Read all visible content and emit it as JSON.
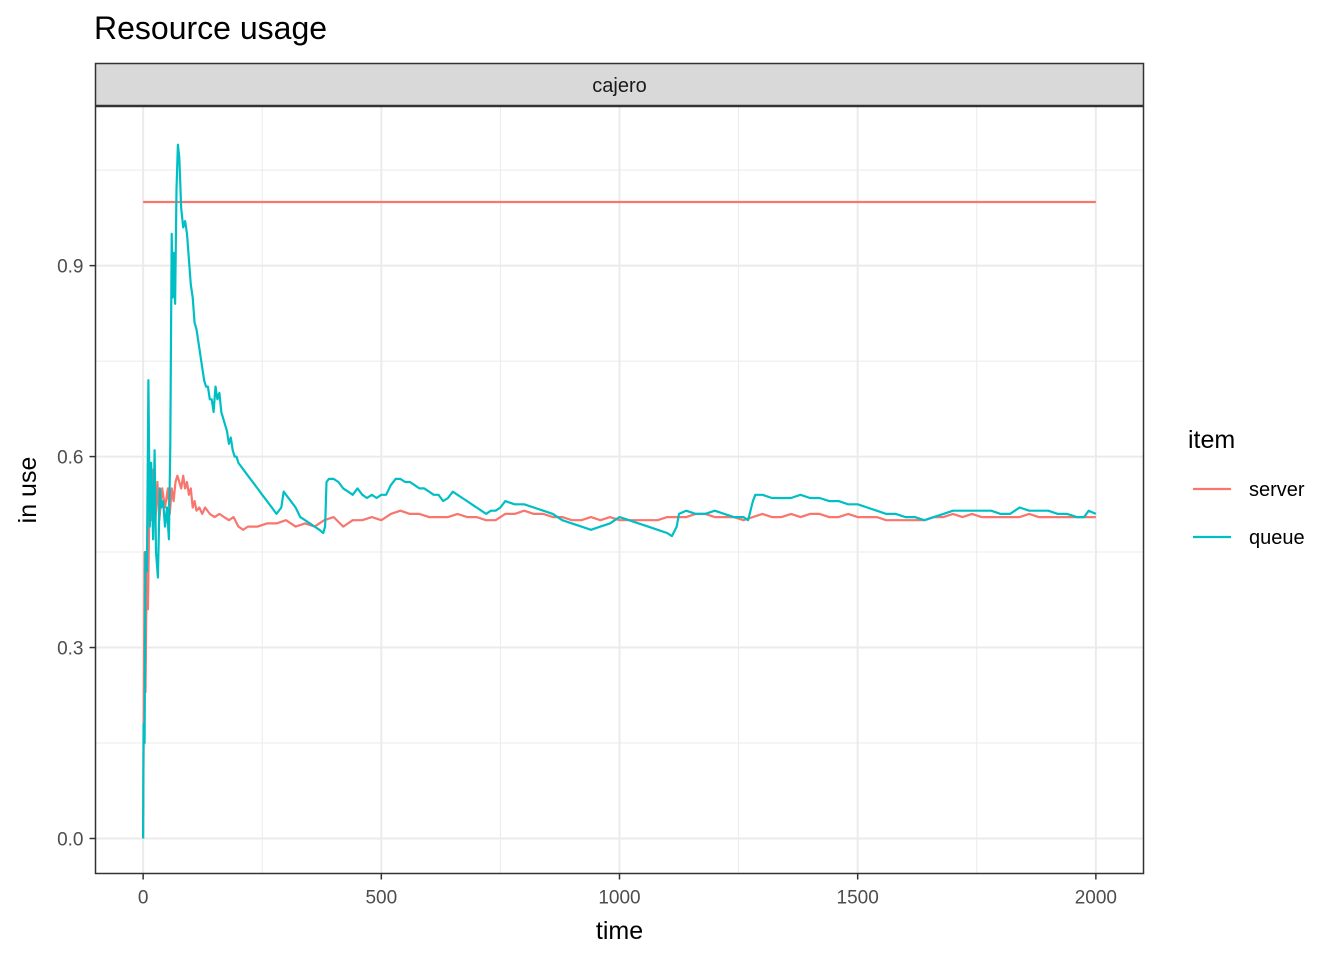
{
  "chart_data": {
    "type": "line",
    "title": "Resource usage",
    "facet_label": "cajero",
    "xlabel": "time",
    "ylabel": "in use",
    "xlim": [
      -100,
      2100
    ],
    "ylim": [
      -0.055,
      1.15
    ],
    "x_ticks": [
      0,
      500,
      1000,
      1500,
      2000
    ],
    "y_ticks": [
      0.0,
      0.3,
      0.6,
      0.9
    ],
    "x_tick_labels": [
      "0",
      "500",
      "1000",
      "1500",
      "2000"
    ],
    "y_tick_labels": [
      "0.0",
      "0.3",
      "0.6",
      "0.9"
    ],
    "grid": true,
    "legend": {
      "title": "item",
      "position": "right"
    },
    "reference_line": {
      "series": "server",
      "y": 1.0,
      "x": [
        0,
        2000
      ]
    },
    "series": [
      {
        "name": "server",
        "color": "#F8766D",
        "points": [
          [
            0,
            0.0
          ],
          [
            3,
            0.45
          ],
          [
            5,
            0.23
          ],
          [
            8,
            0.45
          ],
          [
            10,
            0.36
          ],
          [
            14,
            0.56
          ],
          [
            18,
            0.5
          ],
          [
            22,
            0.58
          ],
          [
            26,
            0.5
          ],
          [
            30,
            0.56
          ],
          [
            34,
            0.5
          ],
          [
            40,
            0.55
          ],
          [
            46,
            0.52
          ],
          [
            52,
            0.55
          ],
          [
            56,
            0.51
          ],
          [
            60,
            0.55
          ],
          [
            64,
            0.53
          ],
          [
            68,
            0.56
          ],
          [
            72,
            0.57
          ],
          [
            76,
            0.56
          ],
          [
            80,
            0.55
          ],
          [
            84,
            0.57
          ],
          [
            88,
            0.55
          ],
          [
            92,
            0.56
          ],
          [
            96,
            0.54
          ],
          [
            100,
            0.55
          ],
          [
            104,
            0.52
          ],
          [
            108,
            0.53
          ],
          [
            112,
            0.515
          ],
          [
            118,
            0.52
          ],
          [
            124,
            0.51
          ],
          [
            130,
            0.52
          ],
          [
            140,
            0.51
          ],
          [
            150,
            0.505
          ],
          [
            160,
            0.51
          ],
          [
            170,
            0.505
          ],
          [
            180,
            0.5
          ],
          [
            190,
            0.505
          ],
          [
            200,
            0.49
          ],
          [
            210,
            0.485
          ],
          [
            220,
            0.49
          ],
          [
            240,
            0.49
          ],
          [
            260,
            0.495
          ],
          [
            280,
            0.495
          ],
          [
            300,
            0.5
          ],
          [
            320,
            0.49
          ],
          [
            340,
            0.495
          ],
          [
            360,
            0.49
          ],
          [
            380,
            0.5
          ],
          [
            400,
            0.505
          ],
          [
            420,
            0.49
          ],
          [
            440,
            0.5
          ],
          [
            460,
            0.5
          ],
          [
            480,
            0.505
          ],
          [
            500,
            0.5
          ],
          [
            520,
            0.51
          ],
          [
            540,
            0.515
          ],
          [
            560,
            0.51
          ],
          [
            580,
            0.51
          ],
          [
            600,
            0.505
          ],
          [
            620,
            0.505
          ],
          [
            640,
            0.505
          ],
          [
            660,
            0.51
          ],
          [
            680,
            0.505
          ],
          [
            700,
            0.505
          ],
          [
            720,
            0.5
          ],
          [
            740,
            0.5
          ],
          [
            760,
            0.51
          ],
          [
            780,
            0.51
          ],
          [
            800,
            0.515
          ],
          [
            820,
            0.51
          ],
          [
            840,
            0.51
          ],
          [
            860,
            0.505
          ],
          [
            880,
            0.505
          ],
          [
            900,
            0.5
          ],
          [
            920,
            0.5
          ],
          [
            940,
            0.505
          ],
          [
            960,
            0.5
          ],
          [
            980,
            0.505
          ],
          [
            1000,
            0.5
          ],
          [
            1020,
            0.5
          ],
          [
            1040,
            0.5
          ],
          [
            1060,
            0.5
          ],
          [
            1080,
            0.5
          ],
          [
            1100,
            0.505
          ],
          [
            1120,
            0.505
          ],
          [
            1140,
            0.505
          ],
          [
            1160,
            0.51
          ],
          [
            1180,
            0.51
          ],
          [
            1200,
            0.505
          ],
          [
            1220,
            0.505
          ],
          [
            1240,
            0.505
          ],
          [
            1260,
            0.5
          ],
          [
            1280,
            0.505
          ],
          [
            1300,
            0.51
          ],
          [
            1320,
            0.505
          ],
          [
            1340,
            0.505
          ],
          [
            1360,
            0.51
          ],
          [
            1380,
            0.505
          ],
          [
            1400,
            0.51
          ],
          [
            1420,
            0.51
          ],
          [
            1440,
            0.505
          ],
          [
            1460,
            0.505
          ],
          [
            1480,
            0.51
          ],
          [
            1500,
            0.505
          ],
          [
            1520,
            0.505
          ],
          [
            1540,
            0.505
          ],
          [
            1560,
            0.5
          ],
          [
            1580,
            0.5
          ],
          [
            1600,
            0.5
          ],
          [
            1620,
            0.5
          ],
          [
            1640,
            0.5
          ],
          [
            1660,
            0.505
          ],
          [
            1680,
            0.505
          ],
          [
            1700,
            0.51
          ],
          [
            1720,
            0.505
          ],
          [
            1740,
            0.51
          ],
          [
            1760,
            0.505
          ],
          [
            1780,
            0.505
          ],
          [
            1800,
            0.505
          ],
          [
            1820,
            0.505
          ],
          [
            1840,
            0.505
          ],
          [
            1860,
            0.51
          ],
          [
            1880,
            0.505
          ],
          [
            1900,
            0.505
          ],
          [
            1920,
            0.505
          ],
          [
            1940,
            0.505
          ],
          [
            1960,
            0.505
          ],
          [
            1980,
            0.505
          ],
          [
            2000,
            0.505
          ]
        ]
      },
      {
        "name": "queue",
        "color": "#00BFC4",
        "points": [
          [
            0,
            0.0
          ],
          [
            1,
            0.18
          ],
          [
            3,
            0.15
          ],
          [
            5,
            0.45
          ],
          [
            8,
            0.42
          ],
          [
            11,
            0.72
          ],
          [
            14,
            0.49
          ],
          [
            17,
            0.59
          ],
          [
            21,
            0.47
          ],
          [
            24,
            0.61
          ],
          [
            27,
            0.45
          ],
          [
            31,
            0.41
          ],
          [
            35,
            0.55
          ],
          [
            38,
            0.52
          ],
          [
            42,
            0.53
          ],
          [
            46,
            0.49
          ],
          [
            50,
            0.52
          ],
          [
            54,
            0.47
          ],
          [
            57,
            0.62
          ],
          [
            60,
            0.95
          ],
          [
            62,
            0.85
          ],
          [
            64,
            0.92
          ],
          [
            67,
            0.84
          ],
          [
            70,
            1.02
          ],
          [
            73,
            1.09
          ],
          [
            76,
            1.07
          ],
          [
            80,
            0.99
          ],
          [
            84,
            0.96
          ],
          [
            88,
            0.97
          ],
          [
            92,
            0.95
          ],
          [
            96,
            0.91
          ],
          [
            100,
            0.87
          ],
          [
            104,
            0.85
          ],
          [
            108,
            0.81
          ],
          [
            112,
            0.8
          ],
          [
            116,
            0.78
          ],
          [
            120,
            0.76
          ],
          [
            124,
            0.74
          ],
          [
            128,
            0.72
          ],
          [
            132,
            0.71
          ],
          [
            136,
            0.71
          ],
          [
            140,
            0.69
          ],
          [
            144,
            0.69
          ],
          [
            148,
            0.67
          ],
          [
            152,
            0.71
          ],
          [
            156,
            0.69
          ],
          [
            160,
            0.7
          ],
          [
            164,
            0.67
          ],
          [
            168,
            0.66
          ],
          [
            172,
            0.65
          ],
          [
            176,
            0.64
          ],
          [
            180,
            0.62
          ],
          [
            184,
            0.63
          ],
          [
            188,
            0.61
          ],
          [
            192,
            0.6
          ],
          [
            196,
            0.6
          ],
          [
            200,
            0.59
          ],
          [
            210,
            0.58
          ],
          [
            220,
            0.57
          ],
          [
            230,
            0.56
          ],
          [
            240,
            0.55
          ],
          [
            250,
            0.54
          ],
          [
            260,
            0.53
          ],
          [
            270,
            0.52
          ],
          [
            280,
            0.51
          ],
          [
            290,
            0.52
          ],
          [
            295,
            0.545
          ],
          [
            300,
            0.54
          ],
          [
            310,
            0.53
          ],
          [
            320,
            0.52
          ],
          [
            330,
            0.505
          ],
          [
            340,
            0.5
          ],
          [
            350,
            0.495
          ],
          [
            360,
            0.49
          ],
          [
            370,
            0.485
          ],
          [
            378,
            0.48
          ],
          [
            382,
            0.49
          ],
          [
            385,
            0.56
          ],
          [
            390,
            0.565
          ],
          [
            400,
            0.565
          ],
          [
            410,
            0.56
          ],
          [
            420,
            0.55
          ],
          [
            430,
            0.545
          ],
          [
            440,
            0.54
          ],
          [
            450,
            0.55
          ],
          [
            460,
            0.54
          ],
          [
            470,
            0.535
          ],
          [
            480,
            0.54
          ],
          [
            490,
            0.535
          ],
          [
            500,
            0.54
          ],
          [
            510,
            0.54
          ],
          [
            520,
            0.555
          ],
          [
            530,
            0.565
          ],
          [
            540,
            0.565
          ],
          [
            550,
            0.56
          ],
          [
            560,
            0.56
          ],
          [
            570,
            0.555
          ],
          [
            580,
            0.55
          ],
          [
            590,
            0.55
          ],
          [
            600,
            0.545
          ],
          [
            610,
            0.54
          ],
          [
            620,
            0.54
          ],
          [
            630,
            0.53
          ],
          [
            640,
            0.535
          ],
          [
            650,
            0.545
          ],
          [
            660,
            0.54
          ],
          [
            670,
            0.535
          ],
          [
            680,
            0.53
          ],
          [
            690,
            0.525
          ],
          [
            700,
            0.52
          ],
          [
            710,
            0.515
          ],
          [
            720,
            0.51
          ],
          [
            730,
            0.515
          ],
          [
            740,
            0.515
          ],
          [
            750,
            0.52
          ],
          [
            760,
            0.53
          ],
          [
            780,
            0.525
          ],
          [
            800,
            0.525
          ],
          [
            820,
            0.52
          ],
          [
            840,
            0.515
          ],
          [
            860,
            0.51
          ],
          [
            880,
            0.5
          ],
          [
            900,
            0.495
          ],
          [
            920,
            0.49
          ],
          [
            940,
            0.485
          ],
          [
            960,
            0.49
          ],
          [
            980,
            0.495
          ],
          [
            1000,
            0.505
          ],
          [
            1020,
            0.5
          ],
          [
            1040,
            0.495
          ],
          [
            1060,
            0.49
          ],
          [
            1080,
            0.485
          ],
          [
            1100,
            0.48
          ],
          [
            1110,
            0.475
          ],
          [
            1120,
            0.49
          ],
          [
            1125,
            0.51
          ],
          [
            1140,
            0.515
          ],
          [
            1160,
            0.51
          ],
          [
            1180,
            0.51
          ],
          [
            1200,
            0.515
          ],
          [
            1220,
            0.51
          ],
          [
            1240,
            0.505
          ],
          [
            1260,
            0.505
          ],
          [
            1270,
            0.5
          ],
          [
            1280,
            0.53
          ],
          [
            1285,
            0.54
          ],
          [
            1300,
            0.54
          ],
          [
            1320,
            0.535
          ],
          [
            1340,
            0.535
          ],
          [
            1360,
            0.535
          ],
          [
            1380,
            0.54
          ],
          [
            1400,
            0.535
          ],
          [
            1420,
            0.535
          ],
          [
            1440,
            0.53
          ],
          [
            1460,
            0.53
          ],
          [
            1480,
            0.525
          ],
          [
            1500,
            0.525
          ],
          [
            1520,
            0.52
          ],
          [
            1540,
            0.515
          ],
          [
            1560,
            0.51
          ],
          [
            1580,
            0.51
          ],
          [
            1600,
            0.505
          ],
          [
            1620,
            0.505
          ],
          [
            1640,
            0.5
          ],
          [
            1660,
            0.505
          ],
          [
            1680,
            0.51
          ],
          [
            1700,
            0.515
          ],
          [
            1720,
            0.515
          ],
          [
            1740,
            0.515
          ],
          [
            1760,
            0.515
          ],
          [
            1780,
            0.515
          ],
          [
            1800,
            0.51
          ],
          [
            1820,
            0.51
          ],
          [
            1840,
            0.52
          ],
          [
            1860,
            0.515
          ],
          [
            1880,
            0.515
          ],
          [
            1900,
            0.515
          ],
          [
            1920,
            0.51
          ],
          [
            1940,
            0.51
          ],
          [
            1960,
            0.505
          ],
          [
            1975,
            0.505
          ],
          [
            1985,
            0.515
          ],
          [
            2000,
            0.51
          ]
        ]
      }
    ]
  }
}
